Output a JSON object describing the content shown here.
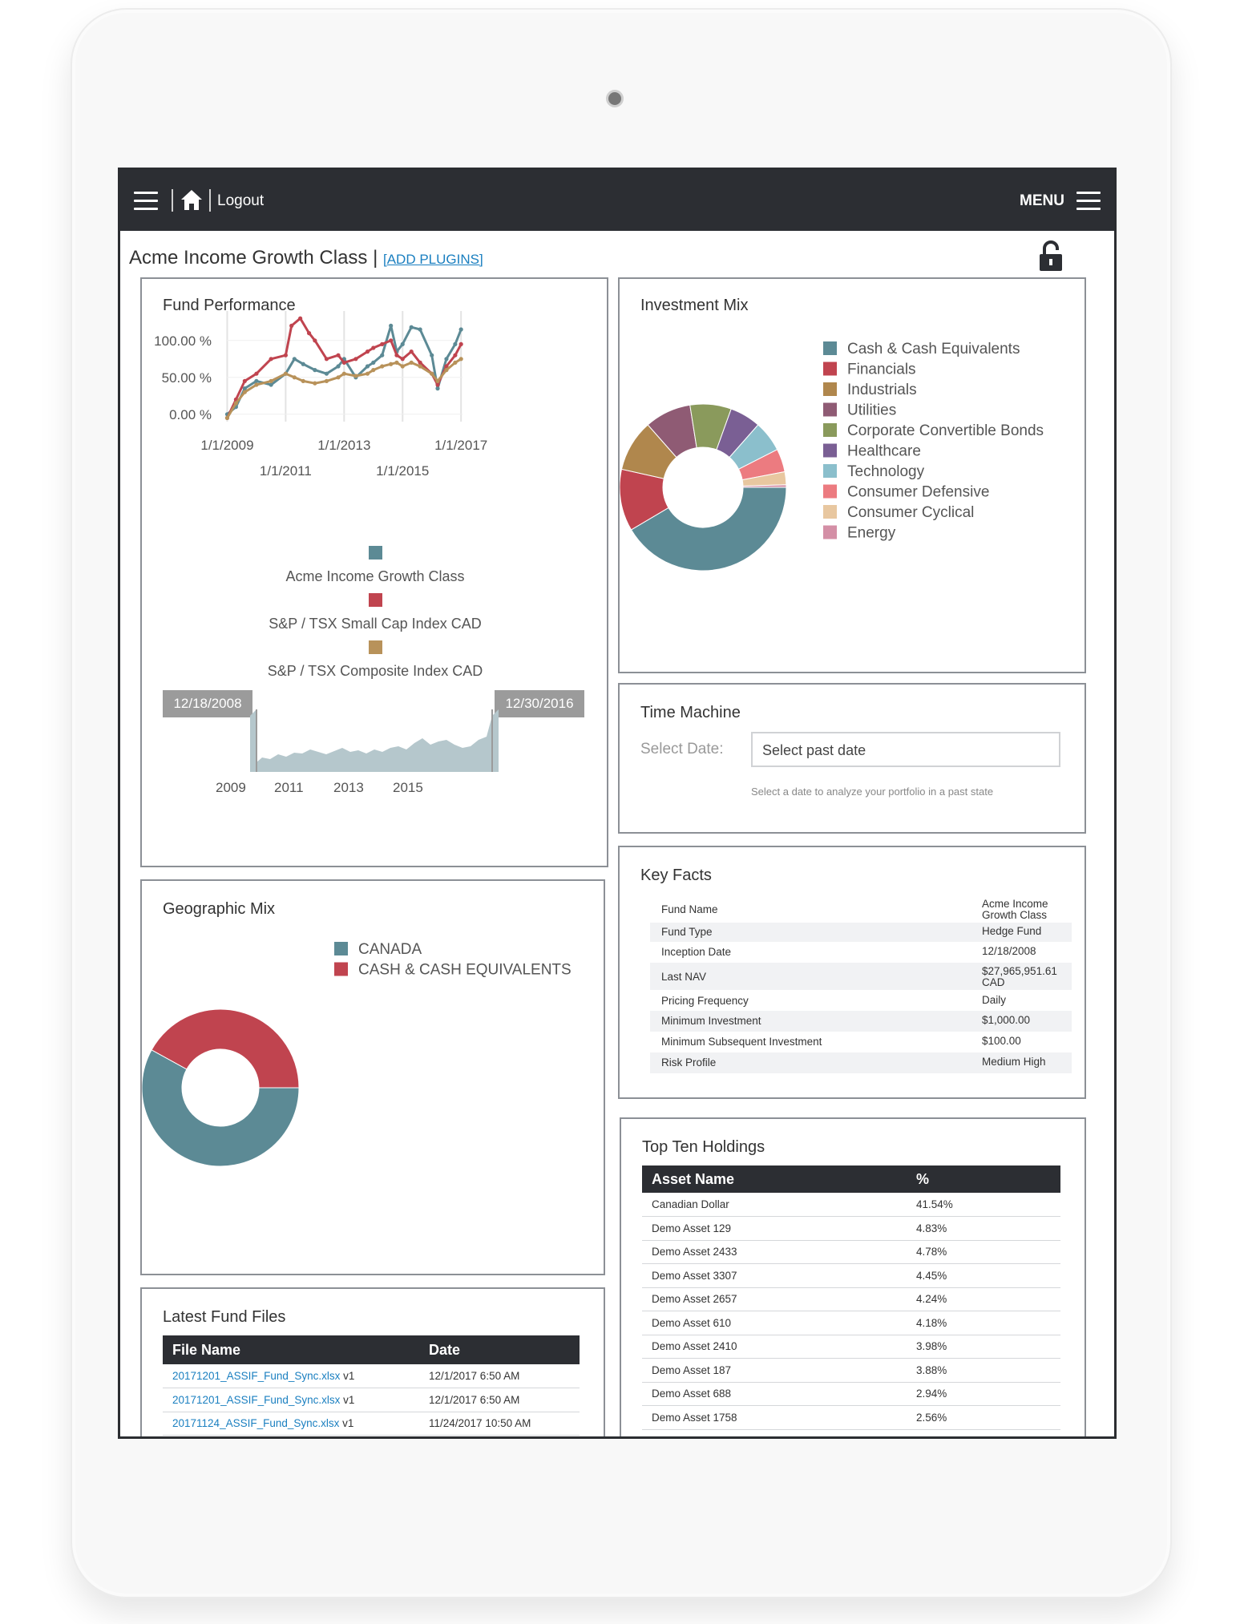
{
  "topbar": {
    "logout_label": "Logout",
    "menu_label": "MENU"
  },
  "page": {
    "title": "Acme Income Growth Class",
    "add_plugins_label": "[ADD PLUGINS]"
  },
  "fund_performance": {
    "title": "Fund Performance",
    "range_start": "12/18/2008",
    "range_end": "12/30/2016",
    "navigator_ticks": [
      "2009",
      "2011",
      "2013",
      "2015"
    ]
  },
  "investment_mix": {
    "title": "Investment Mix"
  },
  "geographic_mix": {
    "title": "Geographic Mix"
  },
  "time_machine": {
    "title": "Time Machine",
    "select_label": "Select Date:",
    "placeholder": "Select past date",
    "help_text": "Select a date to analyze your portfolio in a past state"
  },
  "key_facts": {
    "title": "Key Facts",
    "rows": [
      {
        "label": "Fund Name",
        "value": "Acme Income Growth Class"
      },
      {
        "label": "Fund Type",
        "value": "Hedge Fund"
      },
      {
        "label": "Inception Date",
        "value": "12/18/2008"
      },
      {
        "label": "Last NAV",
        "value": "$27,965,951.61 CAD"
      },
      {
        "label": "Pricing Frequency",
        "value": "Daily"
      },
      {
        "label": "Minimum Investment",
        "value": "$1,000.00"
      },
      {
        "label": "Minimum Subsequent Investment",
        "value": "$100.00"
      },
      {
        "label": "Risk Profile",
        "value": "Medium High"
      }
    ]
  },
  "top_holdings": {
    "title": "Top Ten Holdings",
    "headers": [
      "Asset Name",
      "%"
    ],
    "rows": [
      {
        "name": "Canadian Dollar",
        "pct": "41.54%"
      },
      {
        "name": "Demo Asset 129",
        "pct": "4.83%"
      },
      {
        "name": "Demo Asset 2433",
        "pct": "4.78%"
      },
      {
        "name": "Demo Asset 3307",
        "pct": "4.45%"
      },
      {
        "name": "Demo Asset 2657",
        "pct": "4.24%"
      },
      {
        "name": "Demo Asset 610",
        "pct": "4.18%"
      },
      {
        "name": "Demo Asset 2410",
        "pct": "3.98%"
      },
      {
        "name": "Demo Asset 187",
        "pct": "3.88%"
      },
      {
        "name": "Demo Asset 688",
        "pct": "2.94%"
      },
      {
        "name": "Demo Asset 1758",
        "pct": "2.56%"
      }
    ]
  },
  "fund_files": {
    "title": "Latest Fund Files",
    "headers": [
      "File Name",
      "Date"
    ],
    "rows": [
      {
        "file": "20171201_ASSIF_Fund_Sync.xlsx",
        "version": "v1",
        "date": "12/1/2017 6:50 AM"
      },
      {
        "file": "20171201_ASSIF_Fund_Sync.xlsx",
        "version": "v1",
        "date": "12/1/2017 6:50 AM"
      },
      {
        "file": "20171124_ASSIF_Fund_Sync.xlsx",
        "version": "v1",
        "date": "11/24/2017 10:50 AM"
      }
    ]
  },
  "chart_data": [
    {
      "type": "line",
      "title": "Fund Performance",
      "x_ticks": [
        "1/1/2009",
        "1/1/2011",
        "1/1/2013",
        "1/1/2015",
        "1/1/2017"
      ],
      "y_ticks": [
        "0.00 %",
        "50.00 %",
        "100.00 %"
      ],
      "ylim": [
        -10,
        140
      ],
      "xlim": [
        2008.96,
        2017.05
      ],
      "legend_position": "bottom",
      "series": [
        {
          "name": "Acme Income Growth Class",
          "color": "#5c8a95",
          "x": [
            2009.0,
            2009.3,
            2009.6,
            2010.0,
            2010.5,
            2011.0,
            2011.3,
            2011.6,
            2012.0,
            2012.4,
            2012.8,
            2013.0,
            2013.4,
            2013.8,
            2014.0,
            2014.3,
            2014.6,
            2014.8,
            2015.0,
            2015.3,
            2015.6,
            2016.0,
            2016.2,
            2016.5,
            2016.8,
            2017.0
          ],
          "y": [
            0,
            10,
            35,
            45,
            40,
            55,
            75,
            68,
            60,
            55,
            65,
            75,
            50,
            65,
            70,
            80,
            120,
            85,
            95,
            118,
            115,
            80,
            35,
            75,
            95,
            115
          ]
        },
        {
          "name": "S&P / TSX Small Cap Index CAD",
          "color": "#c0444f",
          "x": [
            2009.0,
            2009.3,
            2009.6,
            2010.0,
            2010.5,
            2011.0,
            2011.2,
            2011.5,
            2011.8,
            2012.0,
            2012.4,
            2012.8,
            2013.0,
            2013.4,
            2013.8,
            2014.0,
            2014.3,
            2014.6,
            2014.8,
            2015.0,
            2015.3,
            2015.6,
            2016.0,
            2016.2,
            2016.5,
            2016.8,
            2017.0
          ],
          "y": [
            -5,
            20,
            45,
            55,
            75,
            80,
            120,
            130,
            110,
            100,
            75,
            80,
            70,
            75,
            85,
            90,
            95,
            100,
            80,
            75,
            85,
            70,
            55,
            40,
            65,
            80,
            95
          ]
        },
        {
          "name": "S&P / TSX Composite Index CAD",
          "color": "#b8925a",
          "x": [
            2009.0,
            2009.3,
            2009.6,
            2010.0,
            2010.5,
            2011.0,
            2011.3,
            2011.6,
            2012.0,
            2012.4,
            2012.8,
            2013.0,
            2013.4,
            2013.8,
            2014.0,
            2014.3,
            2014.6,
            2014.8,
            2015.0,
            2015.3,
            2015.6,
            2016.0,
            2016.2,
            2016.5,
            2016.8,
            2017.0
          ],
          "y": [
            -5,
            15,
            30,
            40,
            45,
            55,
            50,
            45,
            42,
            45,
            50,
            55,
            52,
            55,
            60,
            65,
            68,
            70,
            65,
            70,
            65,
            55,
            45,
            60,
            70,
            75
          ]
        }
      ]
    },
    {
      "type": "pie",
      "title": "Investment Mix",
      "legend_position": "right",
      "labels": [
        "Cash & Cash Equivalents",
        "Financials",
        "Industrials",
        "Utilities",
        "Corporate Convertible Bonds",
        "Healthcare",
        "Technology",
        "Consumer Defensive",
        "Consumer Cyclical",
        "Energy"
      ],
      "values": [
        41.5,
        12,
        10,
        9,
        8,
        6,
        6,
        4.5,
        2.5,
        0.5
      ],
      "colors": [
        "#5c8a95",
        "#c0444f",
        "#b0874d",
        "#8f5b74",
        "#8a9a5c",
        "#7a5f94",
        "#8bbfcc",
        "#ec7b80",
        "#e8c7a0",
        "#d48fa6"
      ]
    },
    {
      "type": "pie",
      "title": "Geographic Mix",
      "legend_position": "top-right",
      "labels": [
        "CANADA",
        "CASH & CASH EQUIVALENTS"
      ],
      "values": [
        58,
        42
      ],
      "colors": [
        "#5c8a95",
        "#c0444f"
      ]
    }
  ]
}
